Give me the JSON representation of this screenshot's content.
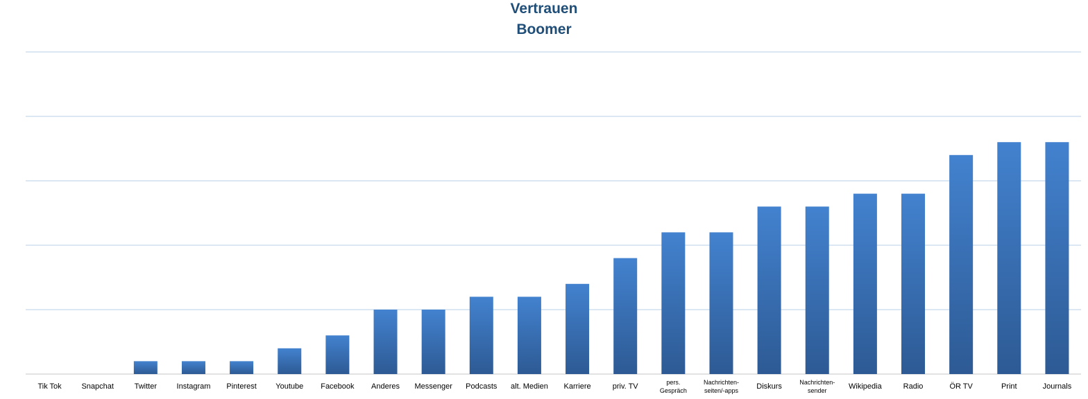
{
  "chart_data": {
    "type": "bar",
    "title": "Vertrauen",
    "subtitle": "Boomer",
    "categories": [
      "Tik Tok",
      "Snapchat",
      "Twitter",
      "Instagram",
      "Pinterest",
      "Youtube",
      "Facebook",
      "Anderes",
      "Messenger",
      "Podcasts",
      "alt. Medien",
      "Karriere",
      "priv. TV",
      "pers.\nGespräch",
      "Nachrichten-\nseiten/-apps",
      "Diskurs",
      "Nachrichten-\nsender",
      "Wikipedia",
      "Radio",
      "ÖR TV",
      "Print",
      "Journals"
    ],
    "values": [
      0,
      0,
      0.2,
      0.2,
      0.2,
      0.4,
      0.6,
      1.0,
      1.0,
      1.2,
      1.2,
      1.4,
      1.8,
      2.2,
      2.2,
      2.6,
      2.6,
      2.8,
      2.8,
      3.4,
      3.6,
      3.6
    ],
    "ylim": [
      0,
      5
    ],
    "yticks": [
      0,
      1,
      2,
      3,
      4,
      5
    ],
    "ytick_labels_visible": false,
    "xlabel": "",
    "ylabel": "",
    "grid": true,
    "legend": "none",
    "colors": {
      "bar_top": "#4382cf",
      "bar_bottom": "#2d5a94",
      "grid": "#c5d9ee",
      "title": "#1f4e79",
      "axis": "#d0d0d0",
      "text": "#000000"
    }
  }
}
